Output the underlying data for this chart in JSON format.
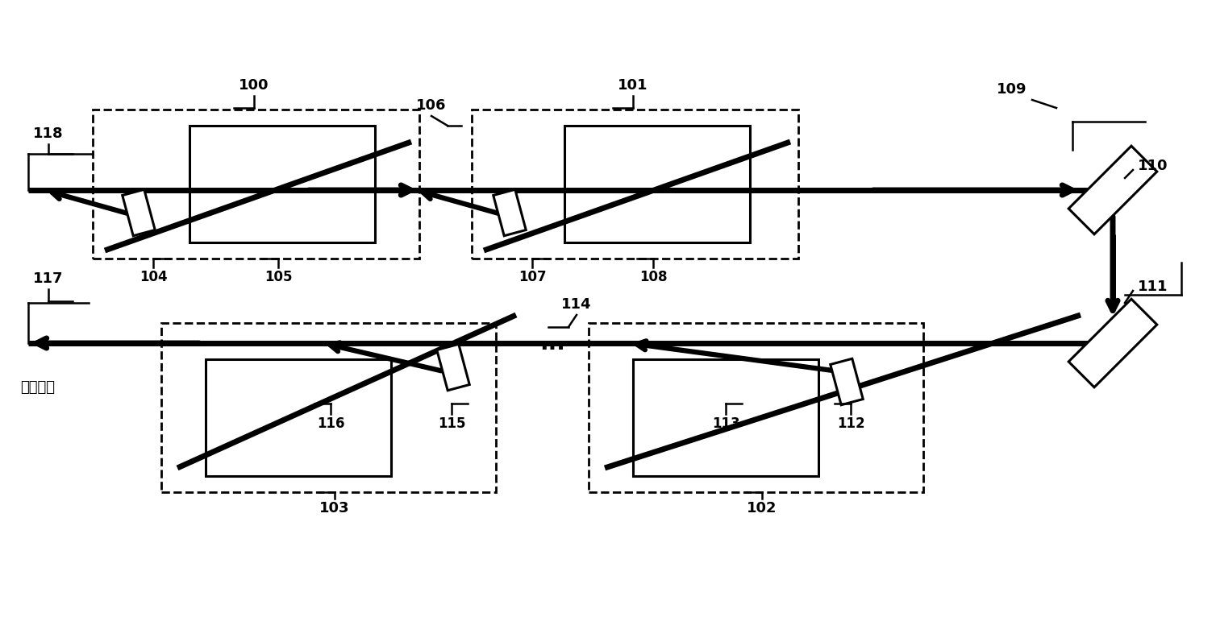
{
  "bg_color": "#ffffff",
  "figsize": [
    15.08,
    7.66
  ],
  "dpi": 100,
  "xlim": [
    0,
    15.08
  ],
  "ylim": [
    0,
    7.66
  ],
  "top_beam_y": 5.3,
  "bot_beam_y": 3.4,
  "right_mirror_x": 13.8,
  "output_text": "输出激光"
}
